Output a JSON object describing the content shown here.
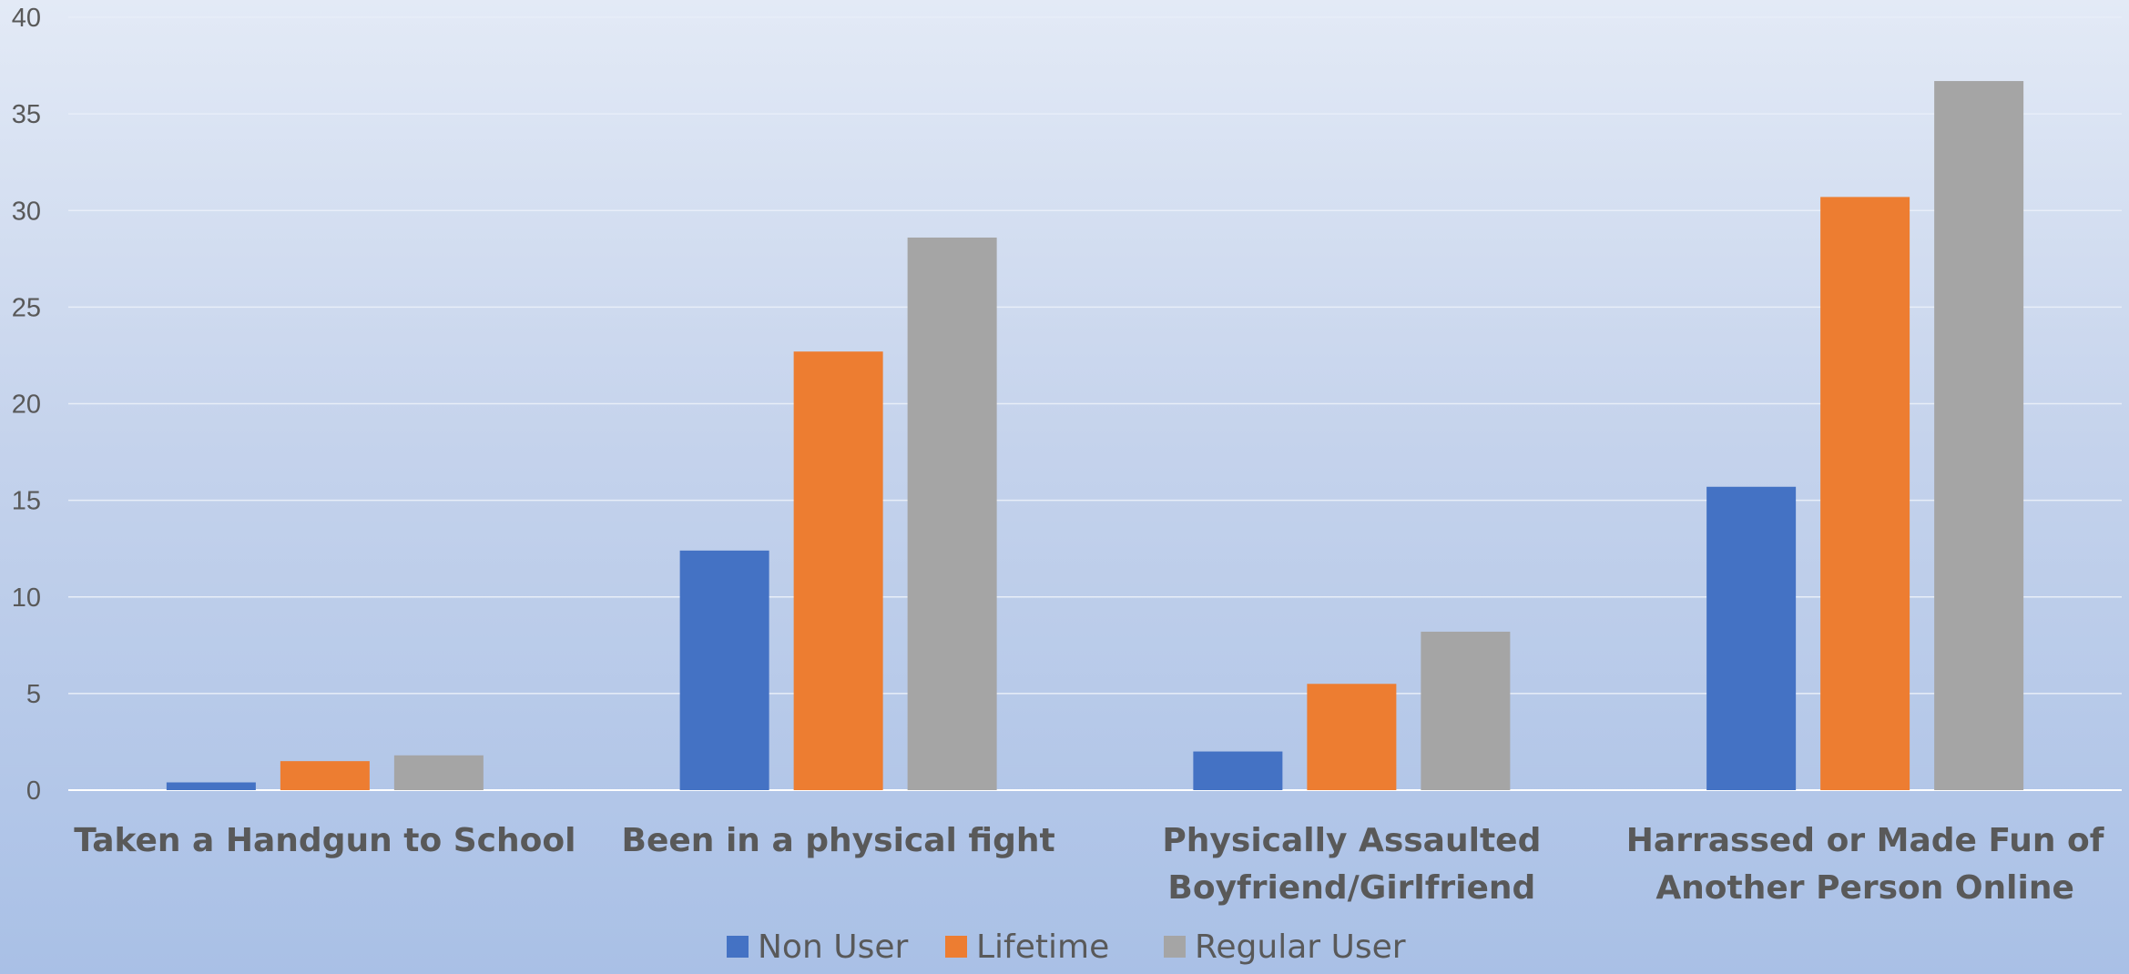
{
  "chart_data": {
    "type": "bar",
    "categories": [
      [
        "Taken a Handgun to School"
      ],
      [
        "Been in a physical fight"
      ],
      [
        "Physically Assaulted",
        "Boyfriend/Girlfriend"
      ],
      [
        "Harrassed or Made Fun of",
        "Another Person Online"
      ]
    ],
    "series": [
      {
        "name": "Non User",
        "color": "#4472c4",
        "values": [
          0.4,
          12.4,
          2.0,
          15.7
        ]
      },
      {
        "name": "Lifetime",
        "color": "#ed7d31",
        "values": [
          1.5,
          22.7,
          5.5,
          30.7
        ]
      },
      {
        "name": "Regular User",
        "color": "#a5a5a5",
        "values": [
          1.8,
          28.6,
          8.2,
          36.7
        ]
      }
    ],
    "yticks": [
      "0",
      "5",
      "10",
      "15",
      "20",
      "25",
      "30",
      "35",
      "40"
    ],
    "ylim": [
      0,
      40
    ],
    "grid": true,
    "legend_position": "bottom"
  }
}
